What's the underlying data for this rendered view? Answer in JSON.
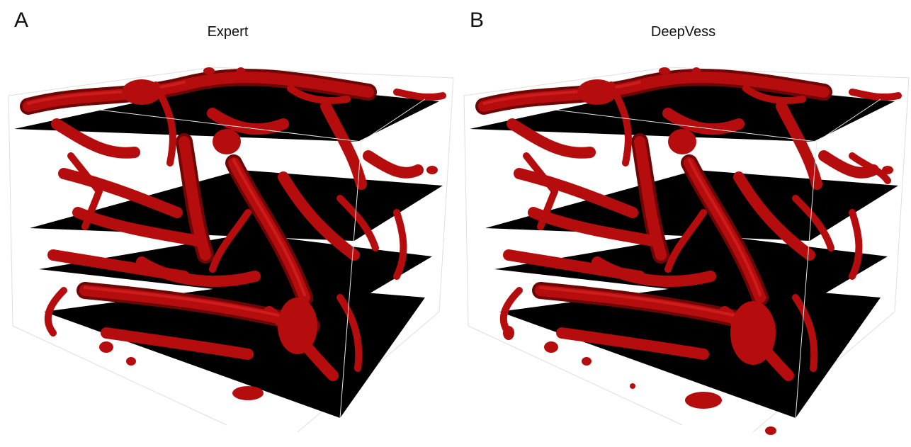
{
  "panels": [
    {
      "letter": "A",
      "title": "Expert"
    },
    {
      "letter": "B",
      "title": "DeepVess"
    }
  ],
  "colors": {
    "vessel": "#b50d0d",
    "vessel_dark": "#6e0606",
    "vessel_highlight": "#e02626",
    "slice": "#000000",
    "box_edge": "#e8e8e8",
    "background": "#ffffff"
  }
}
